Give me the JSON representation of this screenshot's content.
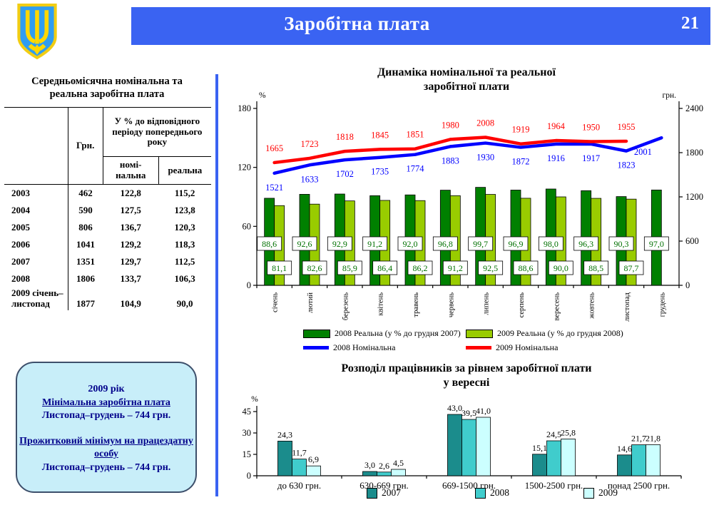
{
  "header": {
    "title": "Заробітна плата",
    "page_number": "21",
    "banner_color": "#3A63F2",
    "coat_of_arms_icon": "ukraine-trident-shield"
  },
  "left_panel": {
    "table": {
      "title_lines": [
        "Середньомісячна номінальна та",
        "реальна  заробітна плата"
      ],
      "col_headers": {
        "unit": "Грн.",
        "pct_group": "У % до відповідного періоду попереднього року",
        "nominal": "номі-нальна",
        "real": "реальна"
      },
      "rows": [
        {
          "year": "2003",
          "hrn": "462",
          "nominal": "122,8",
          "real": "115,2"
        },
        {
          "year": "2004",
          "hrn": "590",
          "nominal": "127,5",
          "real": "123,8"
        },
        {
          "year": "2005",
          "hrn": "806",
          "nominal": "136,7",
          "real": "120,3"
        },
        {
          "year": "2006",
          "hrn": "1041",
          "nominal": "129,2",
          "real": "118,3"
        },
        {
          "year": "2007",
          "hrn": "1351",
          "nominal": "129,7",
          "real": "112,5"
        },
        {
          "year": "2008",
          "hrn": "1806",
          "nominal": "133,7",
          "real": "106,3"
        },
        {
          "year": "2009 січень–листопад",
          "hrn": "1877",
          "nominal": "104,9",
          "real": "90,0"
        }
      ]
    },
    "info_box": {
      "year_line": "2009 рік",
      "min_wage_title": "Мінімальна заробітна плата",
      "min_wage_value": "Листопад–грудень – 744 грн.",
      "subsistence_title": "Прожитковий мінімум на працездатну особу",
      "subsistence_value": "Листопад–грудень – 744 грн."
    }
  },
  "chart_data": [
    {
      "type": "bar+line",
      "title": "Динаміка номінальної та реальної заробітної плати",
      "title_lines": [
        "Динаміка номінальної та реальної",
        "заробітної плати"
      ],
      "categories": [
        "січень",
        "лютий",
        "березень",
        "квітень",
        "травень",
        "червень",
        "липень",
        "серпень",
        "вересень",
        "жовтень",
        "листопад",
        "грудень"
      ],
      "left_axis": {
        "label": "%",
        "max": 180,
        "ticks": [
          0,
          60,
          120,
          180
        ]
      },
      "right_axis": {
        "label": "грн.",
        "max": 2400,
        "ticks": [
          0,
          600,
          1200,
          1800,
          2400
        ]
      },
      "legend_position": "bottom",
      "grid": false,
      "series": [
        {
          "name": "2008 Реальна (у % до грудня 2007)",
          "type": "bar",
          "axis": "left",
          "color": "#008000",
          "values": [
            88.6,
            92.6,
            92.9,
            91.2,
            92.0,
            96.8,
            99.7,
            96.9,
            98.0,
            96.3,
            90.3,
            97.0
          ],
          "labels": [
            "88,6",
            "92,6",
            "92,9",
            "91,2",
            "92,0",
            "96,8",
            "99,7",
            "96,9",
            "98,0",
            "96,3",
            "90,3",
            "97,0"
          ]
        },
        {
          "name": "2009 Реальна (у % до грудня 2008)",
          "type": "bar",
          "axis": "left",
          "color": "#99CC00",
          "values": [
            81.1,
            82.6,
            85.9,
            86.4,
            86.2,
            91.2,
            92.5,
            88.6,
            90.0,
            88.5,
            87.7,
            null
          ],
          "labels": [
            "81,1",
            "82,6",
            "85,9",
            "86,4",
            "86,2",
            "91,2",
            "92,5",
            "88,6",
            "90,0",
            "88,5",
            "87,7",
            null
          ]
        },
        {
          "name": "2008 Номінальна",
          "type": "line",
          "axis": "right",
          "color": "#0000FF",
          "values": [
            1521,
            1633,
            1702,
            1735,
            1774,
            1883,
            1930,
            1872,
            1916,
            1917,
            1823,
            2001
          ]
        },
        {
          "name": "2009 Номінальна",
          "type": "line",
          "axis": "right",
          "color": "#FF0000",
          "values": [
            1665,
            1723,
            1818,
            1845,
            1851,
            1980,
            2008,
            1919,
            1964,
            1950,
            1955,
            null
          ]
        }
      ]
    },
    {
      "type": "bar",
      "title": "Розподіл працівників за рівнем заробітної плати у вересні",
      "title_lines": [
        "Розподіл працівників за рівнем заробітної плати",
        "у вересні"
      ],
      "categories": [
        "до 630 грн.",
        "630-669 грн.",
        "669-1500 грн.",
        "1500-2500 грн.",
        "понад 2500 грн."
      ],
      "ylabel": "%",
      "y_axis": {
        "label": "%",
        "max": 45,
        "ticks": [
          0,
          15,
          30,
          45
        ]
      },
      "legend_position": "bottom",
      "grid": false,
      "series": [
        {
          "name": "2007",
          "color": "#1B8C8C",
          "values": [
            24.3,
            3.0,
            43.0,
            15.1,
            14.6
          ],
          "labels": [
            "24,3",
            "3,0",
            "43,0",
            "15,1",
            "14,6"
          ]
        },
        {
          "name": "2008",
          "color": "#40CCCC",
          "values": [
            11.7,
            2.6,
            39.5,
            24.5,
            21.7
          ],
          "labels": [
            "11,7",
            "2,6",
            "39,5",
            "24,5",
            "21,7"
          ]
        },
        {
          "name": "2009",
          "color": "#CCFFFF",
          "values": [
            6.9,
            4.5,
            41.0,
            25.8,
            21.8
          ],
          "labels": [
            "6,9",
            "4,5",
            "41,0",
            "25,8",
            "21,8"
          ]
        }
      ]
    }
  ]
}
